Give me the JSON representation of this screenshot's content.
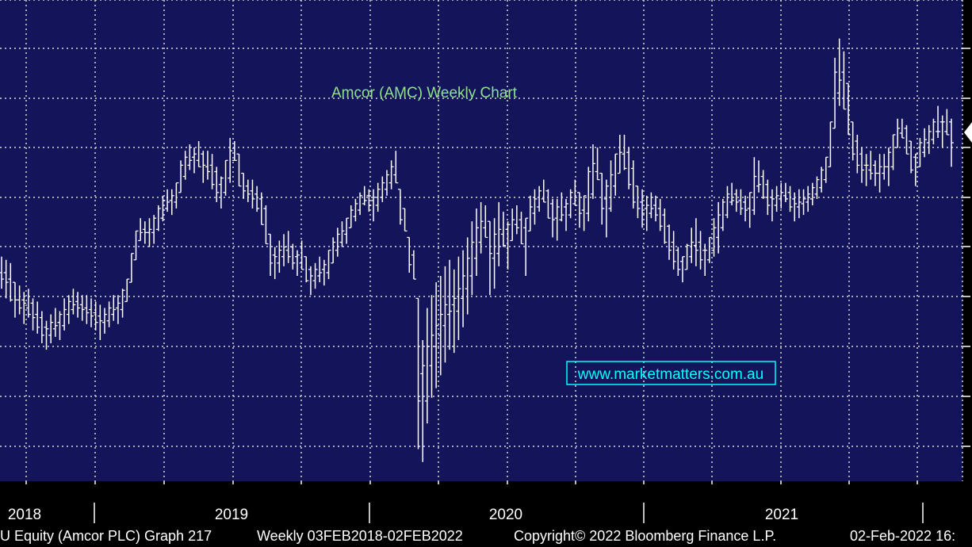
{
  "colors": {
    "plot_background": "#14145a",
    "page_background": "#000000",
    "grid": "#d8d8d8",
    "bars": "#ffffff",
    "title": "#90e090",
    "watermark": "#00ffff"
  },
  "footer": {
    "security": "U Equity (Amcor PLC) Graph 217",
    "range": "Weekly 03FEB2018-02FEB2022",
    "copyright": "Copyright© 2022 Bloomberg Finance L.P.",
    "timestamp": "02-Feb-2022 16:"
  },
  "chart_data": {
    "type": "ohlc",
    "title": "Amcor (AMC) Weekly Chart",
    "watermark": "www.marketmatters.com.au",
    "frequency": "Weekly",
    "date_range": [
      "03FEB2018",
      "02FEB2022"
    ],
    "x_tick_labels": [
      "2018",
      "2019",
      "2020",
      "2021"
    ],
    "ylim": [
      11.4,
      18.9
    ],
    "grid": true,
    "legend": "none",
    "weekly_low_high": [
      [
        14.4,
        14.9
      ],
      [
        14.25,
        14.85
      ],
      [
        14.2,
        14.8
      ],
      [
        13.95,
        14.5
      ],
      [
        14.0,
        14.45
      ],
      [
        13.85,
        14.35
      ],
      [
        13.95,
        14.4
      ],
      [
        13.75,
        14.25
      ],
      [
        13.7,
        14.2
      ],
      [
        13.55,
        14.05
      ],
      [
        13.45,
        13.9
      ],
      [
        13.55,
        14.0
      ],
      [
        13.65,
        14.1
      ],
      [
        13.6,
        14.05
      ],
      [
        13.75,
        14.25
      ],
      [
        13.85,
        14.3
      ],
      [
        14.0,
        14.4
      ],
      [
        13.95,
        14.35
      ],
      [
        13.9,
        14.3
      ],
      [
        13.85,
        14.3
      ],
      [
        13.8,
        14.25
      ],
      [
        13.75,
        14.2
      ],
      [
        13.6,
        14.15
      ],
      [
        13.7,
        14.1
      ],
      [
        13.8,
        14.2
      ],
      [
        13.9,
        14.3
      ],
      [
        13.85,
        14.3
      ],
      [
        13.95,
        14.4
      ],
      [
        14.2,
        14.55
      ],
      [
        14.5,
        14.95
      ],
      [
        14.85,
        15.3
      ],
      [
        15.15,
        15.5
      ],
      [
        15.1,
        15.45
      ],
      [
        15.05,
        15.5
      ],
      [
        15.1,
        15.55
      ],
      [
        15.3,
        15.7
      ],
      [
        15.45,
        15.85
      ],
      [
        15.6,
        15.95
      ],
      [
        15.55,
        15.95
      ],
      [
        15.65,
        16.05
      ],
      [
        15.9,
        16.4
      ],
      [
        16.1,
        16.55
      ],
      [
        16.25,
        16.65
      ],
      [
        16.2,
        16.6
      ],
      [
        16.3,
        16.7
      ],
      [
        16.05,
        16.55
      ],
      [
        16.1,
        16.55
      ],
      [
        15.95,
        16.5
      ],
      [
        15.75,
        16.3
      ],
      [
        15.65,
        16.15
      ],
      [
        15.85,
        16.4
      ],
      [
        16.05,
        16.75
      ],
      [
        16.4,
        16.7
      ],
      [
        16.0,
        16.5
      ],
      [
        15.8,
        16.2
      ],
      [
        15.75,
        16.1
      ],
      [
        15.65,
        16.1
      ],
      [
        15.6,
        16.0
      ],
      [
        15.4,
        15.9
      ],
      [
        15.1,
        15.7
      ],
      [
        14.6,
        15.25
      ],
      [
        14.55,
        15.05
      ],
      [
        14.65,
        15.15
      ],
      [
        14.75,
        15.25
      ],
      [
        14.8,
        15.3
      ],
      [
        14.7,
        15.1
      ],
      [
        14.6,
        15.0
      ],
      [
        14.7,
        15.15
      ],
      [
        14.5,
        14.9
      ],
      [
        14.3,
        14.75
      ],
      [
        14.4,
        14.8
      ],
      [
        14.5,
        14.9
      ],
      [
        14.45,
        14.85
      ],
      [
        14.55,
        15.0
      ],
      [
        14.8,
        15.2
      ],
      [
        14.9,
        15.35
      ],
      [
        15.05,
        15.45
      ],
      [
        15.1,
        15.5
      ],
      [
        15.35,
        15.7
      ],
      [
        15.45,
        15.8
      ],
      [
        15.55,
        15.9
      ],
      [
        15.7,
        16.0
      ],
      [
        15.6,
        15.95
      ],
      [
        15.45,
        15.95
      ],
      [
        15.6,
        16.05
      ],
      [
        15.75,
        16.15
      ],
      [
        15.85,
        16.25
      ],
      [
        15.95,
        16.4
      ],
      [
        16.05,
        16.55
      ],
      [
        15.4,
        15.95
      ],
      [
        15.3,
        15.65
      ],
      [
        14.65,
        15.2
      ],
      [
        14.55,
        15.0
      ],
      [
        11.9,
        14.25
      ],
      [
        11.7,
        13.6
      ],
      [
        12.3,
        14.1
      ],
      [
        12.7,
        14.3
      ],
      [
        12.85,
        14.5
      ],
      [
        13.05,
        14.6
      ],
      [
        13.25,
        14.75
      ],
      [
        13.45,
        14.85
      ],
      [
        13.4,
        14.7
      ],
      [
        13.6,
        14.9
      ],
      [
        13.8,
        15.0
      ],
      [
        14.0,
        15.2
      ],
      [
        14.3,
        15.45
      ],
      [
        14.6,
        15.65
      ],
      [
        14.95,
        15.75
      ],
      [
        15.2,
        15.7
      ],
      [
        14.3,
        15.45
      ],
      [
        14.4,
        15.5
      ],
      [
        14.75,
        15.75
      ],
      [
        15.05,
        15.6
      ],
      [
        14.7,
        15.45
      ],
      [
        15.15,
        15.65
      ],
      [
        15.25,
        15.7
      ],
      [
        15.1,
        15.6
      ],
      [
        14.6,
        15.5
      ],
      [
        15.3,
        15.85
      ],
      [
        15.4,
        15.95
      ],
      [
        15.6,
        16.0
      ],
      [
        15.75,
        16.1
      ],
      [
        15.5,
        15.95
      ],
      [
        15.2,
        15.8
      ],
      [
        15.15,
        15.8
      ],
      [
        15.45,
        15.9
      ],
      [
        15.3,
        15.8
      ],
      [
        15.5,
        15.95
      ],
      [
        15.7,
        16.1
      ],
      [
        15.35,
        15.9
      ],
      [
        15.3,
        15.85
      ],
      [
        15.45,
        16.3
      ],
      [
        15.8,
        16.65
      ],
      [
        16.1,
        16.6
      ],
      [
        15.4,
        16.2
      ],
      [
        15.2,
        16.1
      ],
      [
        15.6,
        16.4
      ],
      [
        15.85,
        16.5
      ],
      [
        16.2,
        16.8
      ],
      [
        16.25,
        16.8
      ],
      [
        15.95,
        16.6
      ],
      [
        15.65,
        16.4
      ],
      [
        15.5,
        16.0
      ],
      [
        15.35,
        15.95
      ],
      [
        15.3,
        15.85
      ],
      [
        15.5,
        15.9
      ],
      [
        15.45,
        15.85
      ],
      [
        15.3,
        15.8
      ],
      [
        15.1,
        15.65
      ],
      [
        14.85,
        15.4
      ],
      [
        14.7,
        15.3
      ],
      [
        14.6,
        15.05
      ],
      [
        14.5,
        14.9
      ],
      [
        14.7,
        15.1
      ],
      [
        14.8,
        15.35
      ],
      [
        14.75,
        15.5
      ],
      [
        14.7,
        15.3
      ],
      [
        14.6,
        15.1
      ],
      [
        14.8,
        15.2
      ],
      [
        14.9,
        15.5
      ],
      [
        14.95,
        15.75
      ],
      [
        15.3,
        15.8
      ],
      [
        15.5,
        16.0
      ],
      [
        15.7,
        16.05
      ],
      [
        15.6,
        15.95
      ],
      [
        15.55,
        15.95
      ],
      [
        15.45,
        15.85
      ],
      [
        15.35,
        15.9
      ],
      [
        15.55,
        16.45
      ],
      [
        15.9,
        16.4
      ],
      [
        15.8,
        16.25
      ],
      [
        15.55,
        16.1
      ],
      [
        15.45,
        15.95
      ],
      [
        15.6,
        16.0
      ],
      [
        15.65,
        16.05
      ],
      [
        15.75,
        16.05
      ],
      [
        15.6,
        16.0
      ],
      [
        15.45,
        15.9
      ],
      [
        15.5,
        15.95
      ],
      [
        15.55,
        15.95
      ],
      [
        15.6,
        16.0
      ],
      [
        15.7,
        16.05
      ],
      [
        15.8,
        16.15
      ],
      [
        15.9,
        16.3
      ],
      [
        16.05,
        16.45
      ],
      [
        16.3,
        17.0
      ],
      [
        16.9,
        18.0
      ],
      [
        17.25,
        18.3
      ],
      [
        17.2,
        18.1
      ],
      [
        16.8,
        17.6
      ],
      [
        16.4,
        17.0
      ],
      [
        16.2,
        16.8
      ],
      [
        16.05,
        16.6
      ],
      [
        16.0,
        16.5
      ],
      [
        16.1,
        16.55
      ],
      [
        16.0,
        16.4
      ],
      [
        15.9,
        16.5
      ],
      [
        16.1,
        16.5
      ],
      [
        16.0,
        16.6
      ],
      [
        16.25,
        16.8
      ],
      [
        16.6,
        17.05
      ],
      [
        16.75,
        17.05
      ],
      [
        16.5,
        16.95
      ],
      [
        16.2,
        16.7
      ],
      [
        16.0,
        16.5
      ],
      [
        16.3,
        16.75
      ],
      [
        16.45,
        16.9
      ],
      [
        16.5,
        16.95
      ],
      [
        16.65,
        17.05
      ],
      [
        16.75,
        17.25
      ],
      [
        16.6,
        17.1
      ],
      [
        16.8,
        17.2
      ],
      [
        16.3,
        17.05
      ]
    ]
  }
}
